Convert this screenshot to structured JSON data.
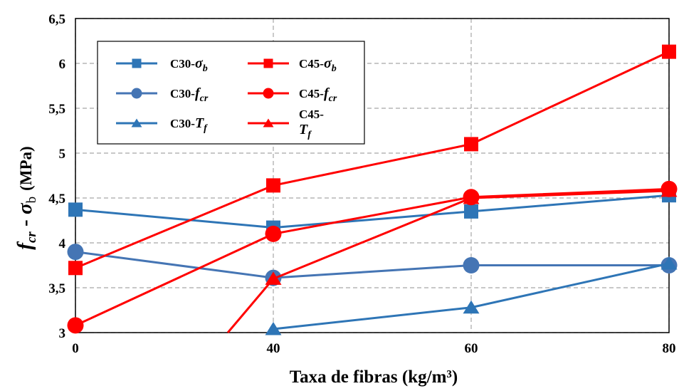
{
  "chart_data": {
    "type": "line",
    "xlabel": "Taxa de fibras (kg/m³)",
    "ylabel": {
      "part1": "f",
      "part1_sub": "cr",
      "dash": " - ",
      "part2": "σ",
      "part2_sub": "b",
      "unit": "(MPa)"
    },
    "x_ticks": [
      "0",
      "40",
      "60",
      "80"
    ],
    "y_ticks": [
      "3",
      "3,5",
      "4",
      "4,5",
      "5",
      "5,5",
      "6",
      "6,5"
    ],
    "ylim": [
      3,
      6.5
    ],
    "x_positions": [
      0,
      1,
      2,
      3
    ],
    "grid": true,
    "legend_position": "top-left",
    "series": [
      {
        "name": "C30-σb",
        "legend": {
          "pre": "C30-",
          "sym": "σ",
          "sub": "b"
        },
        "color": "#2e75b6",
        "marker": "square",
        "values": [
          4.37,
          4.17,
          4.35,
          4.53
        ]
      },
      {
        "name": "C30-fcr",
        "legend": {
          "pre": "C30-",
          "sym": "f",
          "sub": "cr"
        },
        "color": "#4575b4",
        "marker": "circle",
        "values": [
          3.9,
          3.61,
          3.75,
          3.75
        ]
      },
      {
        "name": "C30-Tf",
        "legend": {
          "pre": "C30-",
          "sym": "T",
          "sub": "f"
        },
        "color": "#2e75b6",
        "marker": "triangle",
        "values": [
          null,
          3.04,
          3.28,
          3.77
        ]
      },
      {
        "name": "C45-σb",
        "legend": {
          "pre": "C45-",
          "sym": "σ",
          "sub": "b"
        },
        "color": "#ff0000",
        "marker": "square",
        "values": [
          3.72,
          4.64,
          5.1,
          6.13
        ]
      },
      {
        "name": "C45-fcr",
        "legend": {
          "pre": "C45-",
          "sym": "f",
          "sub": "cr"
        },
        "color": "#ff0000",
        "marker": "circle",
        "values": [
          3.08,
          4.1,
          4.51,
          4.6
        ]
      },
      {
        "name": "C45-Tf",
        "legend": {
          "pre": "C45-",
          "sym": "T",
          "sub": "f",
          "wrap": true
        },
        "color": "#ff0000",
        "marker": "triangle",
        "values": [
          null,
          3.6,
          4.5,
          4.58
        ],
        "enters_from_below_at_x": 0.77
      }
    ]
  }
}
